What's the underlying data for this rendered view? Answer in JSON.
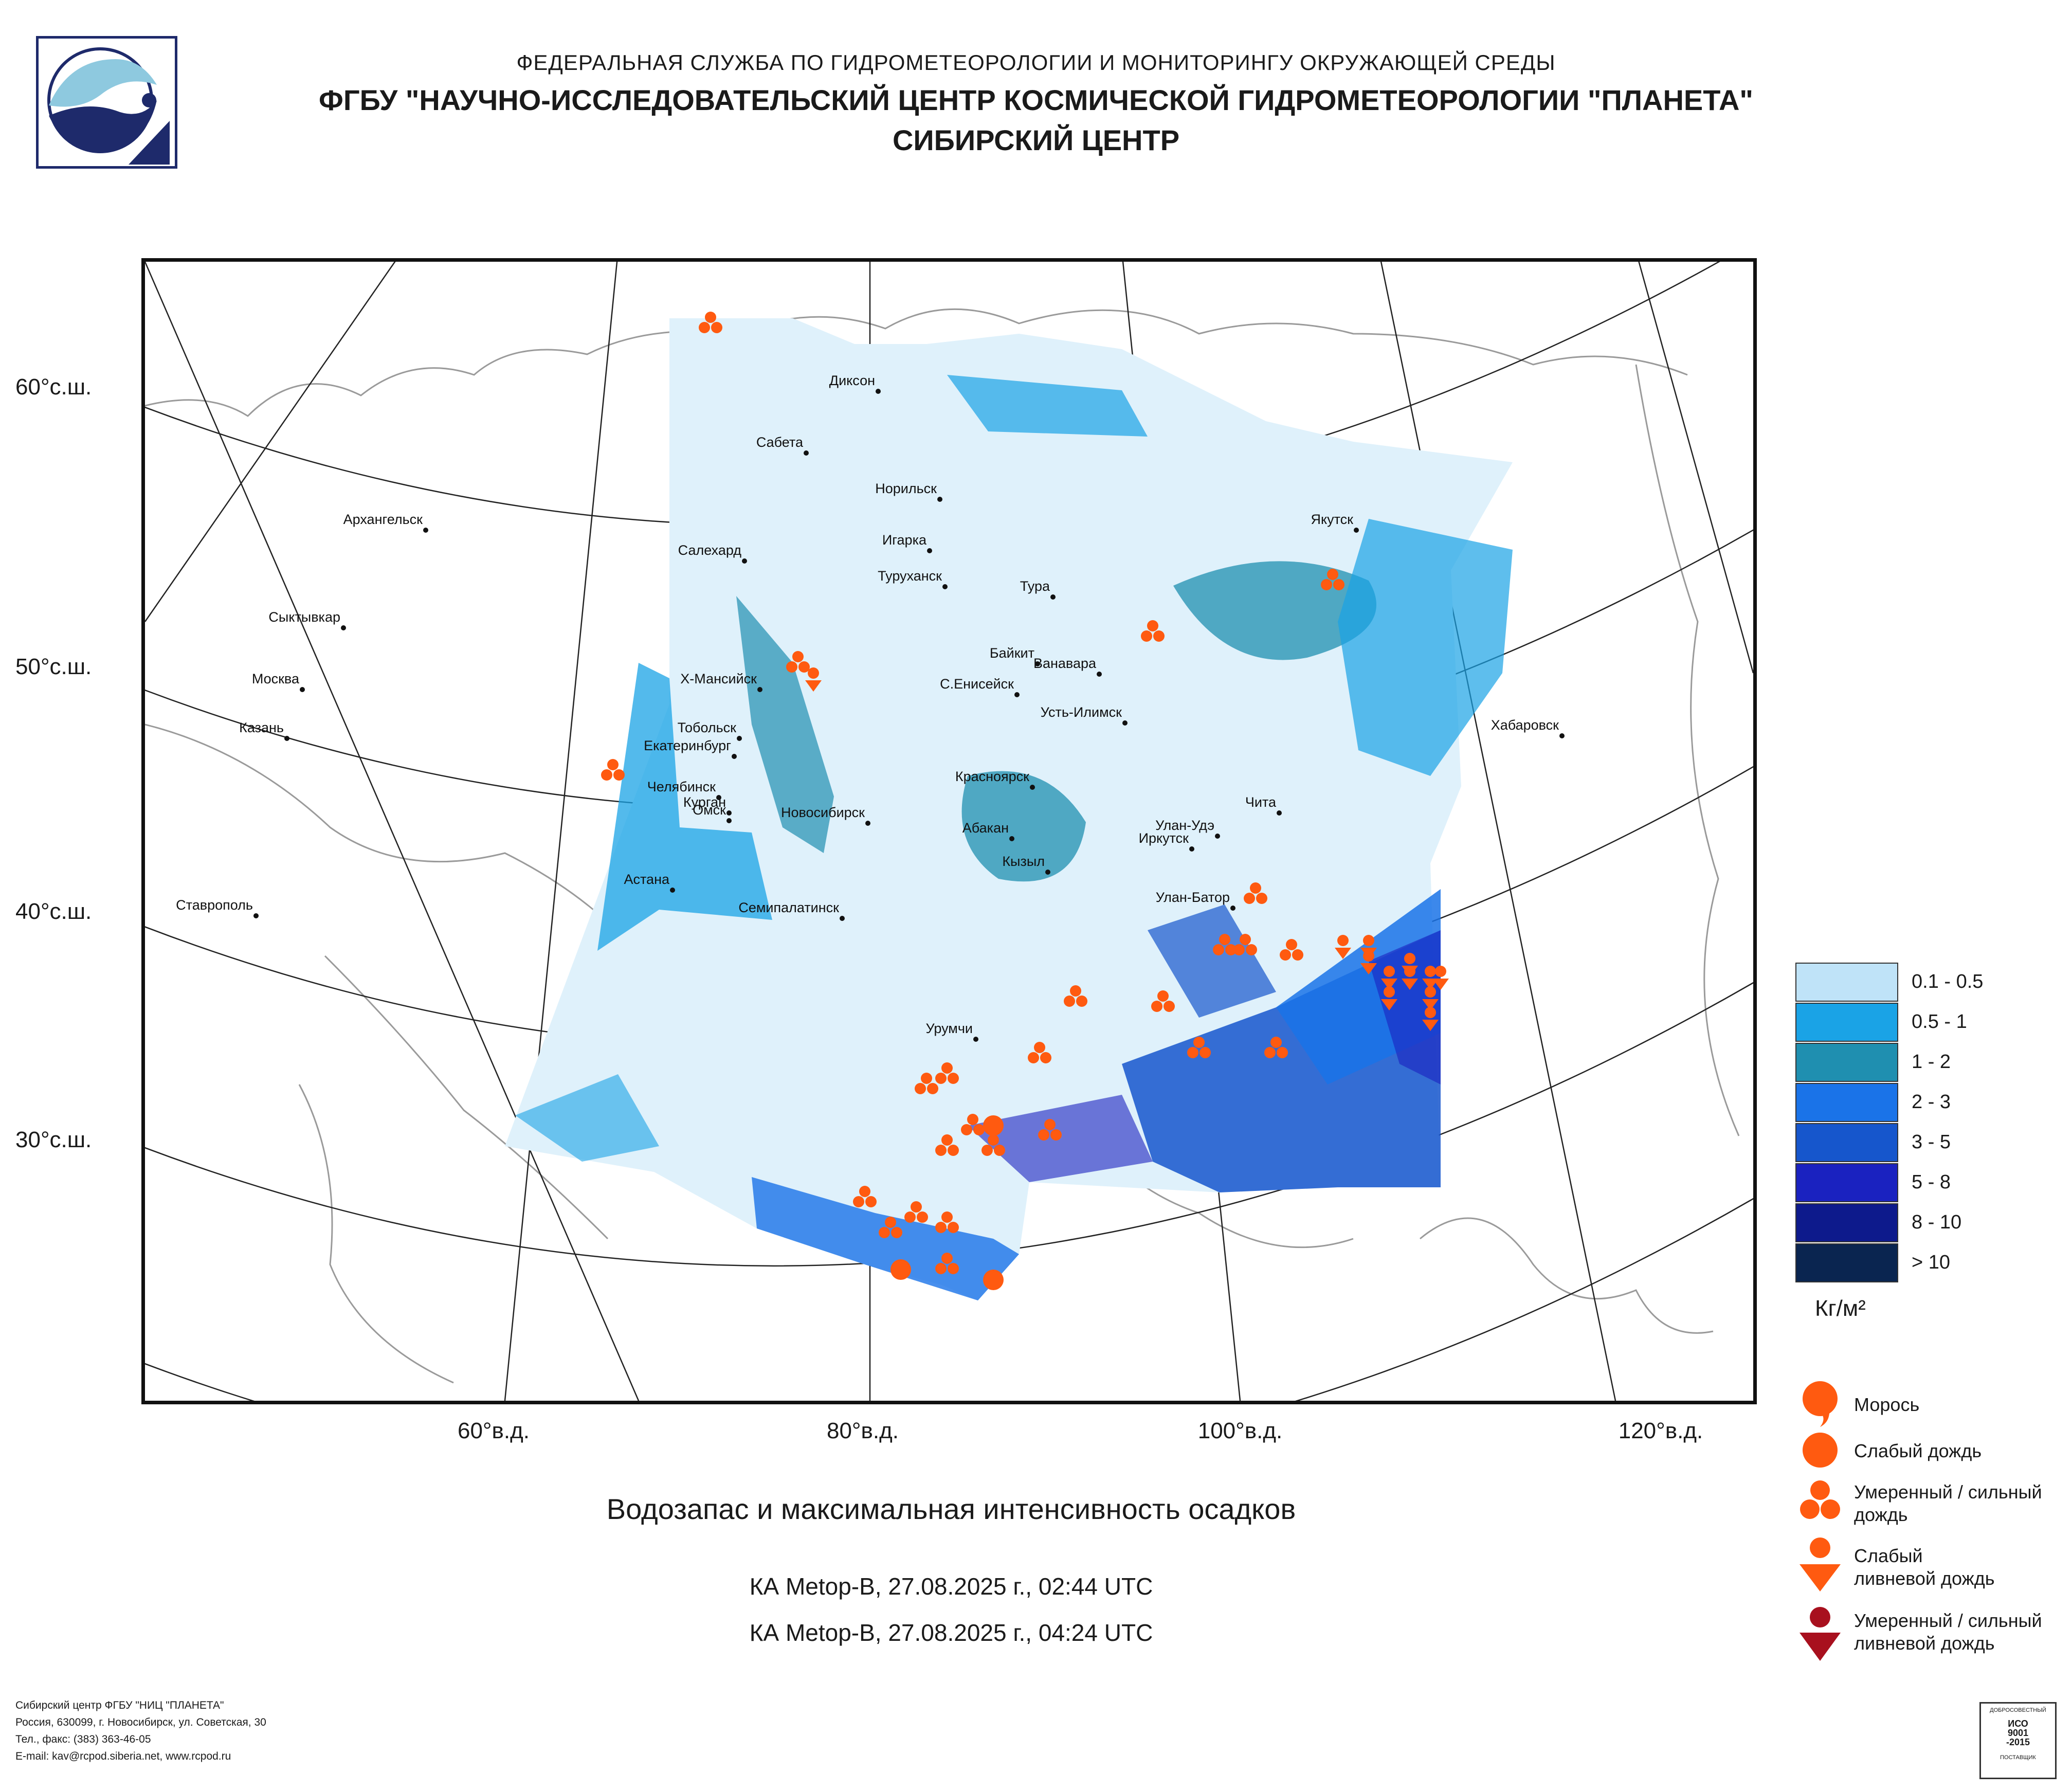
{
  "header": {
    "line1": "ФЕДЕРАЛЬНАЯ СЛУЖБА ПО ГИДРОМЕТЕОРОЛОГИИ И МОНИТОРИНГУ ОКРУЖАЮЩЕЙ СРЕДЫ",
    "line2": "ФГБУ \"НАУЧНО-ИССЛЕДОВАТЕЛЬСКИЙ ЦЕНТР КОСМИЧЕСКОЙ ГИДРОМЕТЕОРОЛОГИИ \"ПЛАНЕТА\"",
    "line3": "СИБИРСКИЙ ЦЕНТР"
  },
  "axes": {
    "lat": [
      "60°с.ш.",
      "50°с.ш.",
      "40°с.ш.",
      "30°с.ш."
    ],
    "lon": [
      "60°в.д.",
      "80°в.д.",
      "100°в.д.",
      "120°в.д."
    ]
  },
  "cities": [
    "Диксон",
    "Сабета",
    "Норильск",
    "Архангельск",
    "Игарка",
    "Салехард",
    "Туруханск",
    "Якутск",
    "Тура",
    "Сыктывкар",
    "Байкит",
    "Ванавара",
    "Москва",
    "Х-Мансийск",
    "С.Енисейск",
    "Усть-Илимск",
    "Хабаровск",
    "Казань",
    "Екатеринбург",
    "Тобольск",
    "Красноярск",
    "Челябинск",
    "Курган",
    "Чита",
    "Омск",
    "Новосибирск",
    "Абакан",
    "Улан-Удэ",
    "Иркутск",
    "Кызыл",
    "Астана",
    "Ставрополь",
    "Улан-Батор",
    "Семипалатинск",
    "Урумчи"
  ],
  "legend": {
    "ranges": [
      {
        "label": "0.1 - 0.5",
        "color": "#bfe3f8"
      },
      {
        "label": "0.5 - 1",
        "color": "#1aa3e6"
      },
      {
        "label": "1 - 2",
        "color": "#1f8fb0"
      },
      {
        "label": "2 - 3",
        "color": "#1a73e8"
      },
      {
        "label": "3 - 5",
        "color": "#1656cc"
      },
      {
        "label": "5 - 8",
        "color": "#1a22c0"
      },
      {
        "label": "8 - 10",
        "color": "#0d1a8c"
      },
      {
        "label": "> 10",
        "color": "#0a2550"
      }
    ],
    "unit": "Кг/м²",
    "symbols": [
      "Морось",
      "Слабый дождь",
      "Умеренный / сильный дождь",
      "Слабый ливневой дождь",
      "Умеренный / сильный ливневой дождь"
    ],
    "symbol_colors": {
      "rain": "#ff5a10",
      "heavy_shower": "#a8101e"
    }
  },
  "title": "Водозапас и максимальная интенсивность осадков",
  "passes": [
    "КА Metop-B, 27.08.2025 г., 02:44 UTC",
    "КА Metop-B, 27.08.2025 г., 04:24 UTC"
  ],
  "footer": [
    "Сибирский центр ФГБУ \"НИЦ \"ПЛАНЕТА\"",
    "Россия, 630099, г. Новосибирск, ул. Советская, 30",
    "Тел., факс: (383) 363-46-05",
    "E-mail: kav@rcpod.siberia.net, www.rcpod.ru"
  ],
  "iso_badge": {
    "line1": "ИСО",
    "line2": "9001",
    "line3": "-2015",
    "top": "ДОБРОСОВЕСТНЫЙ",
    "bottom": "ПОСТАВЩИК"
  }
}
